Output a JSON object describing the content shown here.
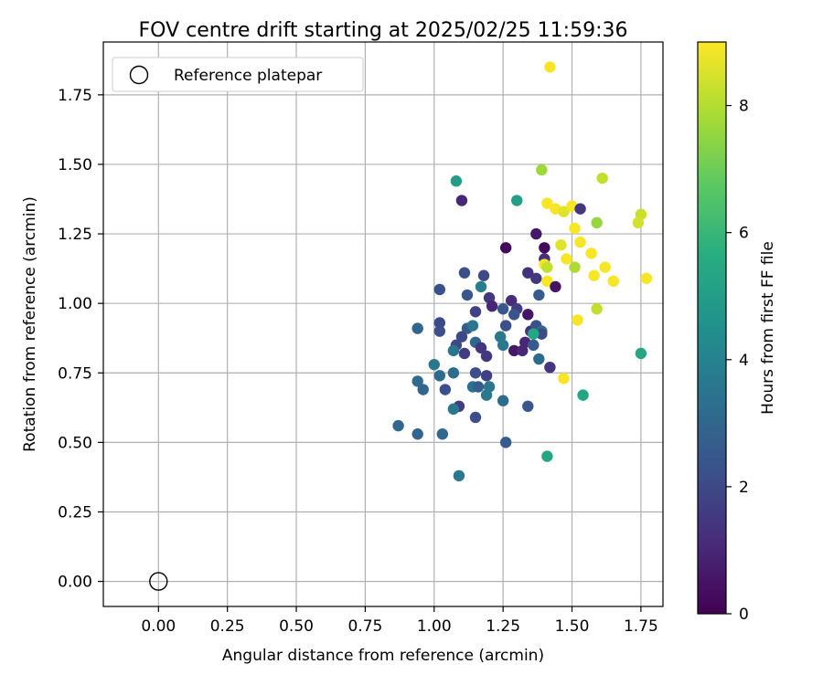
{
  "chart_data": {
    "type": "scatter",
    "title": "FOV centre drift starting at 2025/02/25 11:59:36",
    "xlabel": "Angular distance from reference (arcmin)",
    "ylabel": "Rotation from reference (arcmin)",
    "xlim": [
      -0.2,
      1.83
    ],
    "ylim": [
      -0.09,
      1.94
    ],
    "xticks": [
      "0.00",
      "0.25",
      "0.50",
      "0.75",
      "1.00",
      "1.25",
      "1.50",
      "1.75"
    ],
    "yticks": [
      "0.00",
      "0.25",
      "0.50",
      "0.75",
      "1.00",
      "1.25",
      "1.50",
      "1.75"
    ],
    "grid": true,
    "legend": {
      "position": "top-left",
      "entries": [
        "Reference platepar"
      ]
    },
    "reference_point": {
      "x": 0.0,
      "y": 0.0
    },
    "colorbar": {
      "label": "Hours from first FF file",
      "range": [
        0,
        9
      ],
      "ticks": [
        "0",
        "2",
        "4",
        "6",
        "8"
      ],
      "colormap": "viridis"
    },
    "points": [
      [
        1.42,
        1.85,
        8.9
      ],
      [
        1.39,
        1.48,
        7.7
      ],
      [
        1.08,
        1.44,
        5.0
      ],
      [
        1.1,
        1.37,
        1.0
      ],
      [
        1.3,
        1.37,
        5.1
      ],
      [
        1.61,
        1.45,
        8.2
      ],
      [
        1.41,
        1.36,
        8.9
      ],
      [
        1.44,
        1.34,
        8.9
      ],
      [
        1.47,
        1.33,
        8.6
      ],
      [
        1.5,
        1.35,
        8.9
      ],
      [
        1.53,
        1.34,
        1.5
      ],
      [
        1.59,
        1.29,
        7.6
      ],
      [
        1.75,
        1.32,
        8.3
      ],
      [
        1.74,
        1.29,
        8.4
      ],
      [
        1.26,
        1.2,
        0.2
      ],
      [
        1.51,
        1.27,
        8.9
      ],
      [
        1.37,
        1.25,
        0.6
      ],
      [
        1.4,
        1.2,
        0.2
      ],
      [
        1.53,
        1.22,
        8.9
      ],
      [
        1.46,
        1.21,
        8.6
      ],
      [
        1.57,
        1.18,
        8.9
      ],
      [
        1.4,
        1.16,
        1.2
      ],
      [
        1.48,
        1.16,
        8.9
      ],
      [
        1.4,
        1.14,
        8.9
      ],
      [
        1.41,
        1.13,
        8.2
      ],
      [
        1.51,
        1.13,
        7.9
      ],
      [
        1.62,
        1.13,
        8.9
      ],
      [
        1.34,
        1.11,
        1.3
      ],
      [
        1.11,
        1.11,
        2.2
      ],
      [
        1.18,
        1.1,
        2.0
      ],
      [
        1.37,
        1.09,
        1.5
      ],
      [
        1.41,
        1.08,
        8.9
      ],
      [
        1.58,
        1.1,
        8.9
      ],
      [
        1.65,
        1.08,
        8.9
      ],
      [
        1.77,
        1.09,
        8.9
      ],
      [
        1.44,
        1.06,
        0.5
      ],
      [
        1.17,
        1.06,
        3.8
      ],
      [
        1.02,
        1.05,
        2.3
      ],
      [
        1.12,
        1.03,
        2.5
      ],
      [
        1.2,
        1.02,
        1.5
      ],
      [
        1.28,
        1.01,
        1.2
      ],
      [
        1.38,
        1.03,
        2.6
      ],
      [
        1.21,
        0.99,
        1.0
      ],
      [
        1.25,
        0.98,
        2.5
      ],
      [
        1.3,
        0.98,
        1.6
      ],
      [
        1.59,
        0.98,
        8.2
      ],
      [
        1.29,
        0.96,
        2.4
      ],
      [
        1.34,
        0.96,
        0.5
      ],
      [
        1.15,
        0.97,
        1.8
      ],
      [
        1.02,
        0.93,
        2.0
      ],
      [
        1.52,
        0.94,
        8.9
      ],
      [
        0.94,
        0.91,
        3.0
      ],
      [
        1.12,
        0.91,
        2.6
      ],
      [
        1.14,
        0.92,
        3.6
      ],
      [
        1.26,
        0.92,
        2.2
      ],
      [
        1.35,
        0.9,
        1.4
      ],
      [
        1.37,
        0.92,
        2.3
      ],
      [
        1.39,
        0.9,
        3.2
      ],
      [
        1.39,
        0.89,
        2.0
      ],
      [
        1.36,
        0.89,
        5.4
      ],
      [
        1.02,
        0.9,
        2.2
      ],
      [
        1.1,
        0.88,
        2.0
      ],
      [
        1.24,
        0.88,
        3.6
      ],
      [
        1.08,
        0.85,
        2.0
      ],
      [
        1.15,
        0.86,
        3.0
      ],
      [
        1.17,
        0.84,
        1.4
      ],
      [
        1.33,
        0.86,
        1.0
      ],
      [
        1.11,
        0.82,
        1.6
      ],
      [
        1.19,
        0.81,
        1.5
      ],
      [
        1.25,
        0.85,
        3.6
      ],
      [
        1.36,
        0.85,
        2.6
      ],
      [
        1.07,
        0.83,
        3.5
      ],
      [
        1.29,
        0.83,
        0.6
      ],
      [
        1.32,
        0.83,
        1.0
      ],
      [
        1.38,
        0.8,
        3.2
      ],
      [
        1.42,
        0.77,
        1.4
      ],
      [
        1.75,
        0.82,
        5.4
      ],
      [
        1.0,
        0.78,
        3.6
      ],
      [
        1.02,
        0.74,
        3.2
      ],
      [
        0.94,
        0.72,
        3.2
      ],
      [
        1.07,
        0.75,
        3.2
      ],
      [
        1.15,
        0.75,
        2.2
      ],
      [
        1.19,
        0.74,
        1.7
      ],
      [
        1.47,
        0.73,
        8.9
      ],
      [
        0.96,
        0.69,
        3.0
      ],
      [
        1.04,
        0.69,
        2.2
      ],
      [
        1.14,
        0.7,
        3.4
      ],
      [
        1.16,
        0.7,
        2.7
      ],
      [
        1.2,
        0.7,
        3.6
      ],
      [
        1.54,
        0.67,
        5.3
      ],
      [
        1.19,
        0.67,
        3.6
      ],
      [
        1.25,
        0.65,
        3.2
      ],
      [
        1.09,
        0.63,
        1.6
      ],
      [
        1.07,
        0.62,
        3.6
      ],
      [
        1.34,
        0.63,
        2.5
      ],
      [
        1.15,
        0.59,
        2.2
      ],
      [
        0.87,
        0.56,
        3.0
      ],
      [
        0.94,
        0.53,
        3.0
      ],
      [
        1.03,
        0.53,
        3.1
      ],
      [
        1.26,
        0.5,
        2.6
      ],
      [
        1.41,
        0.45,
        5.3
      ],
      [
        1.09,
        0.38,
        3.6
      ]
    ]
  }
}
